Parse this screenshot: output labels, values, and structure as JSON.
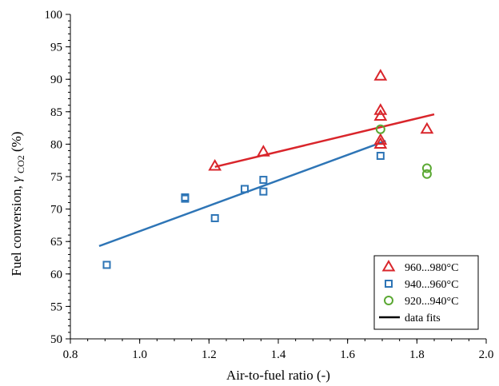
{
  "chart_data": {
    "type": "scatter",
    "xlabel": "Air-to-fuel ratio (-)",
    "ylabel": {
      "prefix": "Fuel conversion, ",
      "symbol": "γ",
      "subscript": "CO2",
      "suffix": " (%)"
    },
    "xlim": [
      0.8,
      2.0
    ],
    "ylim": [
      50,
      100
    ],
    "x_ticks": [
      0.8,
      1.0,
      1.2,
      1.4,
      1.6,
      1.8,
      2.0
    ],
    "y_ticks": [
      50,
      55,
      60,
      65,
      70,
      75,
      80,
      85,
      90,
      95,
      100
    ],
    "x_tick_labels": [
      "0.8",
      "1.0",
      "1.2",
      "1.4",
      "1.6",
      "1.8",
      "2.0"
    ],
    "y_tick_labels": [
      "50",
      "55",
      "60",
      "65",
      "70",
      "75",
      "80",
      "85",
      "90",
      "95",
      "100"
    ],
    "grid": false,
    "legend_position": "bottom-right",
    "series": [
      {
        "name": "960...980°C",
        "marker": "triangle",
        "color": "#d9252b",
        "points": [
          [
            1.217,
            76.6
          ],
          [
            1.357,
            78.8
          ],
          [
            1.695,
            90.5
          ],
          [
            1.695,
            85.2
          ],
          [
            1.695,
            84.3
          ],
          [
            1.695,
            80.6
          ],
          [
            1.695,
            80.0
          ],
          [
            1.829,
            82.3
          ]
        ],
        "fit": [
          [
            1.217,
            76.5
          ],
          [
            1.85,
            84.6
          ]
        ]
      },
      {
        "name": "940...960°C",
        "marker": "square",
        "color": "#2e75b6",
        "points": [
          [
            0.905,
            61.4
          ],
          [
            1.131,
            71.6
          ],
          [
            1.131,
            71.8
          ],
          [
            1.217,
            68.6
          ],
          [
            1.303,
            73.1
          ],
          [
            1.357,
            74.5
          ],
          [
            1.357,
            72.7
          ],
          [
            1.695,
            78.2
          ]
        ],
        "fit": [
          [
            0.883,
            64.3
          ],
          [
            1.71,
            80.5
          ]
        ]
      },
      {
        "name": "920...940°C",
        "marker": "circle",
        "color": "#5aa832",
        "points": [
          [
            1.695,
            82.3
          ],
          [
            1.829,
            76.3
          ],
          [
            1.829,
            75.4
          ]
        ]
      }
    ],
    "fit_legend": {
      "name": "data fits",
      "color": "#000000"
    }
  }
}
